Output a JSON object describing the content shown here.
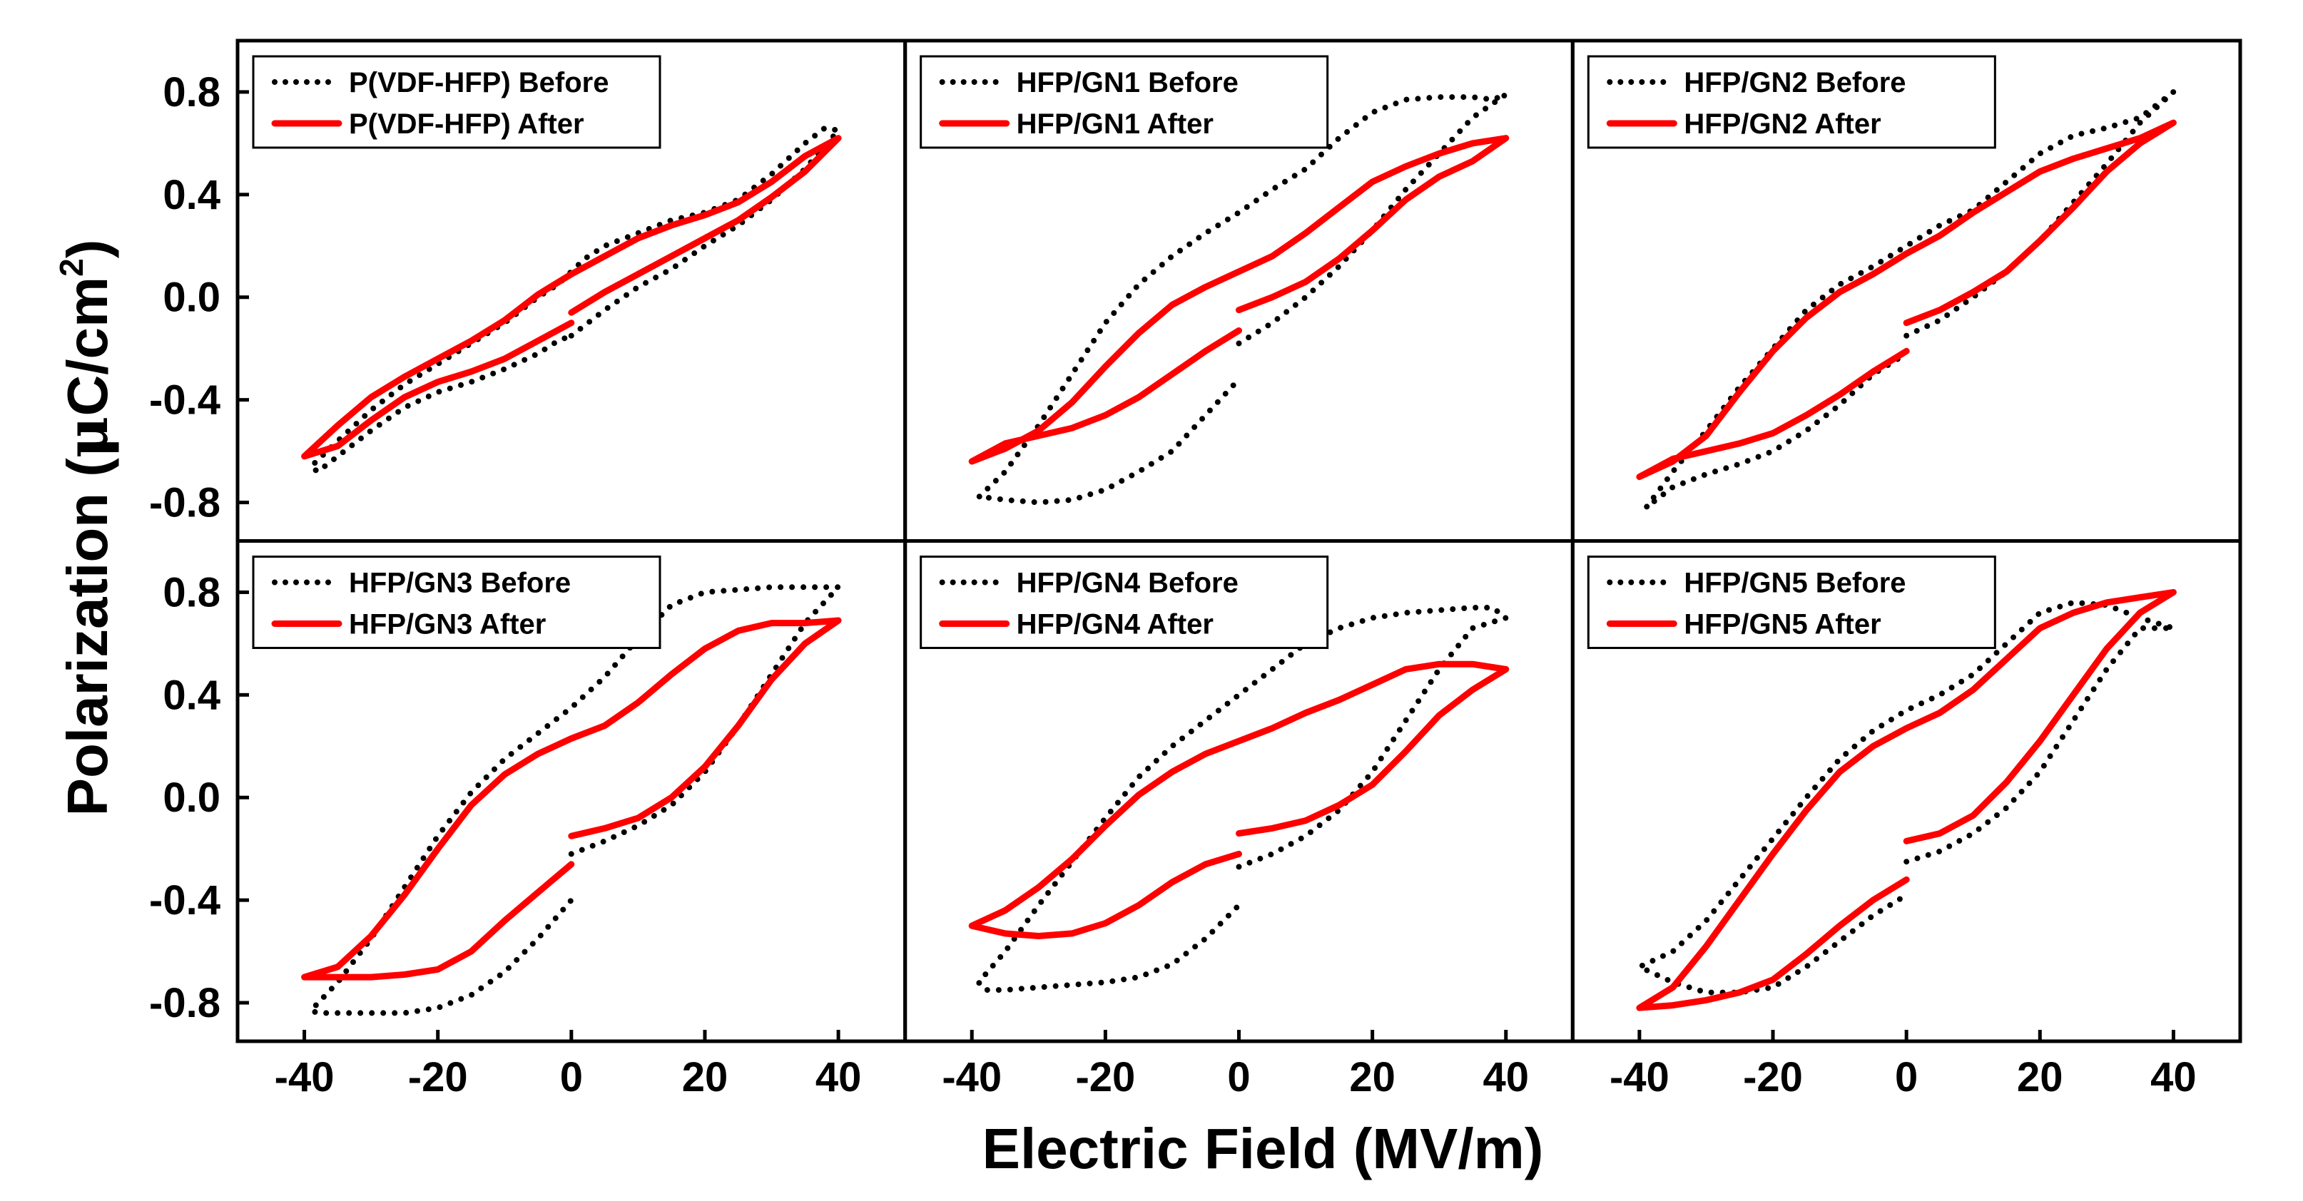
{
  "chart_data": {
    "type": "line",
    "layout": "2x3 grid of panels with shared axes",
    "xlabel": "Electric Field (MV/m)",
    "ylabel": "Polarization (μC/cm²)",
    "ylabel_parts": {
      "main": "Polarization (",
      "mu": "μ",
      "unit": "C/cm",
      "sup": "2",
      "close": ")"
    },
    "xlim": [
      -50,
      50
    ],
    "ylim": [
      -0.95,
      1.0
    ],
    "x_ticks": [
      -40,
      -20,
      0,
      20,
      40
    ],
    "x_tick_labels": [
      "-40",
      "-20",
      "0",
      "20",
      "40"
    ],
    "y_ticks": [
      0.8,
      0.4,
      0.0,
      -0.4,
      -0.8
    ],
    "y_tick_labels": [
      "0.8",
      "0.4",
      "0.0",
      "-0.4",
      "-0.8"
    ],
    "series_styles": {
      "before": {
        "color": "#000000",
        "dash": "dotted"
      },
      "after": {
        "color": "#ff0000",
        "dash": "solid"
      }
    },
    "panels": [
      {
        "name": "P(VDF-HFP)",
        "legend": [
          "P(VDF-HFP) Before",
          "P(VDF-HFP) After"
        ],
        "series": [
          {
            "name": "P(VDF-HFP) Before",
            "style": "before",
            "x": [
              0,
              5,
              10,
              15,
              20,
              25,
              30,
              35,
              40,
              38,
              35,
              30,
              25,
              20,
              15,
              10,
              5,
              2,
              0,
              -2,
              -5,
              -10,
              -15,
              -20,
              -25,
              -30,
              -35,
              -39,
              -38,
              -35,
              -30,
              -25,
              -20,
              -15,
              -10,
              -5,
              -2,
              0
            ],
            "y": [
              -0.15,
              -0.05,
              0.04,
              0.11,
              0.2,
              0.28,
              0.38,
              0.5,
              0.65,
              0.66,
              0.6,
              0.48,
              0.38,
              0.33,
              0.3,
              0.25,
              0.2,
              0.15,
              0.1,
              0.05,
              0.0,
              -0.1,
              -0.18,
              -0.26,
              -0.34,
              -0.44,
              -0.56,
              -0.66,
              -0.68,
              -0.62,
              -0.52,
              -0.43,
              -0.37,
              -0.33,
              -0.28,
              -0.22,
              -0.17,
              -0.15
            ]
          },
          {
            "name": "P(VDF-HFP) After",
            "style": "after",
            "x": [
              0,
              5,
              10,
              15,
              20,
              25,
              30,
              35,
              40,
              35,
              30,
              25,
              20,
              15,
              10,
              5,
              0,
              -5,
              -10,
              -15,
              -20,
              -25,
              -30,
              -35,
              -40,
              -35,
              -30,
              -25,
              -20,
              -15,
              -10,
              -5,
              0
            ],
            "y": [
              -0.06,
              0.02,
              0.09,
              0.16,
              0.23,
              0.3,
              0.39,
              0.49,
              0.62,
              0.55,
              0.45,
              0.37,
              0.32,
              0.28,
              0.23,
              0.16,
              0.09,
              0.01,
              -0.09,
              -0.17,
              -0.24,
              -0.31,
              -0.39,
              -0.5,
              -0.62,
              -0.58,
              -0.48,
              -0.39,
              -0.33,
              -0.29,
              -0.24,
              -0.17,
              -0.1
            ]
          }
        ]
      },
      {
        "name": "HFP/GN1",
        "legend": [
          "HFP/GN1 Before",
          "HFP/GN1 After"
        ],
        "series": [
          {
            "name": "HFP/GN1 Before",
            "style": "before",
            "x": [
              0,
              5,
              10,
              15,
              20,
              25,
              30,
              35,
              40,
              38,
              35,
              30,
              25,
              20,
              15,
              10,
              5,
              0,
              -5,
              -10,
              -15,
              -20,
              -25,
              -30,
              -35,
              -39,
              -38,
              -35,
              -30,
              -25,
              -20,
              -15,
              -10,
              -5,
              0
            ],
            "y": [
              -0.18,
              -0.1,
              0.0,
              0.12,
              0.26,
              0.42,
              0.56,
              0.7,
              0.79,
              0.77,
              0.78,
              0.78,
              0.77,
              0.72,
              0.62,
              0.5,
              0.42,
              0.33,
              0.25,
              0.16,
              0.05,
              -0.1,
              -0.3,
              -0.5,
              -0.68,
              -0.78,
              -0.78,
              -0.79,
              -0.8,
              -0.79,
              -0.75,
              -0.68,
              -0.6,
              -0.46,
              -0.32
            ]
          },
          {
            "name": "HFP/GN1 After",
            "style": "after",
            "x": [
              0,
              5,
              10,
              15,
              20,
              25,
              30,
              35,
              40,
              35,
              30,
              25,
              20,
              15,
              10,
              5,
              0,
              -5,
              -10,
              -15,
              -20,
              -25,
              -30,
              -35,
              -40,
              -35,
              -30,
              -25,
              -20,
              -15,
              -10,
              -5,
              0
            ],
            "y": [
              -0.05,
              0.0,
              0.06,
              0.15,
              0.26,
              0.38,
              0.47,
              0.53,
              0.62,
              0.6,
              0.56,
              0.51,
              0.45,
              0.35,
              0.25,
              0.16,
              0.1,
              0.04,
              -0.03,
              -0.14,
              -0.27,
              -0.41,
              -0.52,
              -0.59,
              -0.64,
              -0.57,
              -0.54,
              -0.51,
              -0.46,
              -0.39,
              -0.3,
              -0.21,
              -0.13
            ]
          }
        ]
      },
      {
        "name": "HFP/GN2",
        "legend": [
          "HFP/GN2 Before",
          "HFP/GN2 After"
        ],
        "series": [
          {
            "name": "HFP/GN2 Before",
            "style": "before",
            "x": [
              0,
              5,
              10,
              15,
              20,
              25,
              30,
              35,
              40,
              38,
              35,
              30,
              25,
              20,
              15,
              10,
              5,
              0,
              -5,
              -10,
              -15,
              -20,
              -25,
              -30,
              -35,
              -39,
              -38,
              -35,
              -30,
              -25,
              -20,
              -15,
              -10,
              -5,
              0
            ],
            "y": [
              -0.15,
              -0.09,
              0.0,
              0.1,
              0.22,
              0.37,
              0.52,
              0.68,
              0.8,
              0.76,
              0.7,
              0.66,
              0.63,
              0.56,
              0.45,
              0.34,
              0.28,
              0.2,
              0.12,
              0.05,
              -0.05,
              -0.2,
              -0.35,
              -0.52,
              -0.68,
              -0.82,
              -0.8,
              -0.74,
              -0.69,
              -0.65,
              -0.6,
              -0.52,
              -0.42,
              -0.3,
              -0.22
            ]
          },
          {
            "name": "HFP/GN2 After",
            "style": "after",
            "x": [
              0,
              5,
              10,
              15,
              20,
              25,
              30,
              35,
              40,
              35,
              30,
              25,
              20,
              15,
              10,
              5,
              0,
              -5,
              -10,
              -15,
              -20,
              -25,
              -30,
              -35,
              -40,
              -35,
              -30,
              -25,
              -20,
              -15,
              -10,
              -5,
              0
            ],
            "y": [
              -0.1,
              -0.05,
              0.02,
              0.1,
              0.22,
              0.35,
              0.49,
              0.6,
              0.68,
              0.62,
              0.58,
              0.54,
              0.49,
              0.41,
              0.33,
              0.24,
              0.17,
              0.09,
              0.02,
              -0.08,
              -0.21,
              -0.37,
              -0.54,
              -0.64,
              -0.7,
              -0.63,
              -0.6,
              -0.57,
              -0.53,
              -0.46,
              -0.38,
              -0.29,
              -0.21
            ]
          }
        ]
      },
      {
        "name": "HFP/GN3",
        "legend": [
          "HFP/GN3 Before",
          "HFP/GN3 After"
        ],
        "series": [
          {
            "name": "HFP/GN3 Before",
            "style": "before",
            "x": [
              0,
              5,
              10,
              15,
              20,
              25,
              30,
              35,
              40,
              40,
              35,
              30,
              25,
              20,
              15,
              10,
              5,
              0,
              -5,
              -10,
              -15,
              -20,
              -25,
              -30,
              -35,
              -39,
              -38,
              -35,
              -30,
              -25,
              -20,
              -15,
              -10,
              -5,
              0
            ],
            "y": [
              -0.22,
              -0.17,
              -0.11,
              -0.03,
              0.1,
              0.28,
              0.48,
              0.68,
              0.82,
              0.82,
              0.82,
              0.82,
              0.81,
              0.8,
              0.75,
              0.62,
              0.47,
              0.35,
              0.25,
              0.15,
              0.02,
              -0.15,
              -0.35,
              -0.55,
              -0.72,
              -0.83,
              -0.84,
              -0.84,
              -0.84,
              -0.84,
              -0.82,
              -0.77,
              -0.68,
              -0.55,
              -0.4
            ]
          },
          {
            "name": "HFP/GN3 After",
            "style": "after",
            "x": [
              0,
              5,
              10,
              15,
              20,
              25,
              30,
              35,
              40,
              35,
              30,
              25,
              20,
              15,
              10,
              5,
              0,
              -5,
              -10,
              -15,
              -20,
              -25,
              -30,
              -35,
              -40,
              -35,
              -30,
              -25,
              -20,
              -15,
              -10,
              -5,
              0
            ],
            "y": [
              -0.15,
              -0.12,
              -0.08,
              0.0,
              0.12,
              0.28,
              0.46,
              0.6,
              0.69,
              0.68,
              0.68,
              0.65,
              0.58,
              0.48,
              0.37,
              0.28,
              0.23,
              0.17,
              0.09,
              -0.03,
              -0.2,
              -0.38,
              -0.54,
              -0.66,
              -0.7,
              -0.7,
              -0.7,
              -0.69,
              -0.67,
              -0.6,
              -0.48,
              -0.37,
              -0.26
            ]
          }
        ]
      },
      {
        "name": "HFP/GN4",
        "legend": [
          "HFP/GN4 Before",
          "HFP/GN4 After"
        ],
        "series": [
          {
            "name": "HFP/GN4 Before",
            "style": "before",
            "x": [
              0,
              5,
              10,
              15,
              20,
              25,
              30,
              35,
              40,
              38,
              35,
              30,
              25,
              20,
              15,
              10,
              5,
              0,
              -5,
              -10,
              -15,
              -20,
              -25,
              -30,
              -35,
              -39,
              -38,
              -35,
              -30,
              -25,
              -20,
              -15,
              -10,
              -5,
              0
            ],
            "y": [
              -0.27,
              -0.22,
              -0.15,
              -0.05,
              0.1,
              0.3,
              0.5,
              0.66,
              0.7,
              0.74,
              0.74,
              0.73,
              0.72,
              0.7,
              0.66,
              0.6,
              0.5,
              0.4,
              0.3,
              0.2,
              0.08,
              -0.08,
              -0.25,
              -0.42,
              -0.6,
              -0.72,
              -0.75,
              -0.75,
              -0.74,
              -0.73,
              -0.72,
              -0.7,
              -0.65,
              -0.55,
              -0.42
            ]
          },
          {
            "name": "HFP/GN4 After",
            "style": "after",
            "x": [
              0,
              5,
              10,
              15,
              20,
              25,
              30,
              35,
              40,
              35,
              30,
              25,
              20,
              15,
              10,
              5,
              0,
              -5,
              -10,
              -15,
              -20,
              -25,
              -30,
              -35,
              -40,
              -35,
              -30,
              -25,
              -20,
              -15,
              -10,
              -5,
              0
            ],
            "y": [
              -0.14,
              -0.12,
              -0.09,
              -0.03,
              0.05,
              0.18,
              0.32,
              0.42,
              0.5,
              0.52,
              0.52,
              0.5,
              0.44,
              0.38,
              0.33,
              0.27,
              0.22,
              0.17,
              0.1,
              0.01,
              -0.11,
              -0.24,
              -0.35,
              -0.44,
              -0.5,
              -0.53,
              -0.54,
              -0.53,
              -0.49,
              -0.42,
              -0.33,
              -0.26,
              -0.22
            ]
          }
        ]
      },
      {
        "name": "HFP/GN5",
        "legend": [
          "HFP/GN5 Before",
          "HFP/GN5 After"
        ],
        "series": [
          {
            "name": "HFP/GN5 Before",
            "style": "before",
            "x": [
              0,
              5,
              10,
              15,
              20,
              25,
              30,
              35,
              40,
              35,
              30,
              25,
              20,
              15,
              10,
              5,
              0,
              -5,
              -10,
              -15,
              -20,
              -25,
              -30,
              -35,
              -40,
              -35,
              -30,
              -25,
              -20,
              -15,
              -10,
              -5,
              0
            ],
            "y": [
              -0.25,
              -0.21,
              -0.14,
              -0.04,
              0.1,
              0.3,
              0.5,
              0.66,
              0.66,
              0.7,
              0.75,
              0.76,
              0.72,
              0.6,
              0.48,
              0.4,
              0.34,
              0.26,
              0.15,
              0.0,
              -0.16,
              -0.32,
              -0.48,
              -0.6,
              -0.66,
              -0.72,
              -0.76,
              -0.76,
              -0.74,
              -0.66,
              -0.56,
              -0.46,
              -0.38
            ]
          },
          {
            "name": "HFP/GN5 After",
            "style": "after",
            "x": [
              0,
              5,
              10,
              15,
              20,
              25,
              30,
              35,
              40,
              35,
              30,
              25,
              20,
              15,
              10,
              5,
              0,
              -5,
              -10,
              -15,
              -20,
              -25,
              -30,
              -35,
              -40,
              -35,
              -30,
              -25,
              -20,
              -15,
              -10,
              -5,
              0
            ],
            "y": [
              -0.17,
              -0.14,
              -0.07,
              0.06,
              0.22,
              0.4,
              0.58,
              0.72,
              0.8,
              0.78,
              0.76,
              0.72,
              0.66,
              0.54,
              0.42,
              0.33,
              0.27,
              0.2,
              0.1,
              -0.05,
              -0.22,
              -0.4,
              -0.58,
              -0.74,
              -0.82,
              -0.81,
              -0.79,
              -0.76,
              -0.71,
              -0.61,
              -0.5,
              -0.4,
              -0.32
            ]
          }
        ]
      }
    ]
  }
}
